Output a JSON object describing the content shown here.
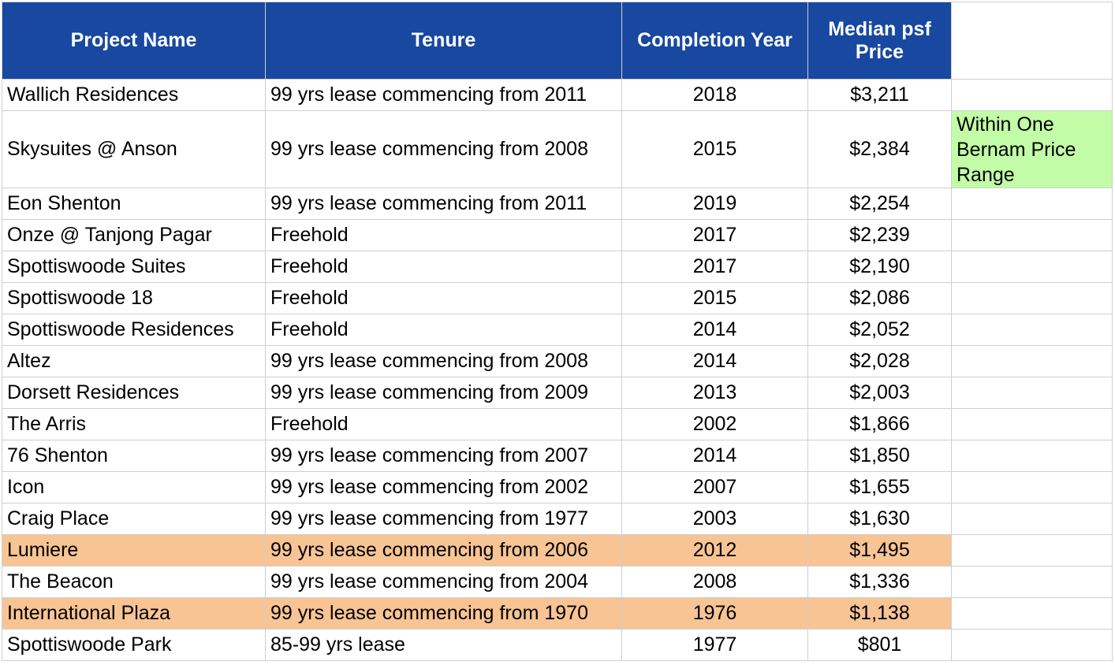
{
  "headers": {
    "project_name": "Project Name",
    "tenure": "Tenure",
    "completion_year": "Completion Year",
    "median_psf_price": "Median psf Price"
  },
  "note": "Within One Bernam Price Range",
  "colors": {
    "header_bg": "#1848a0",
    "highlight_orange": "#f8c494",
    "note_green": "#c2fca6"
  },
  "rows": [
    {
      "name": "Wallich Residences",
      "tenure": "99 yrs lease commencing from 2011",
      "year": "2018",
      "price": "$3,211",
      "highlight": false
    },
    {
      "name": "Skysuites @ Anson",
      "tenure": "99 yrs lease commencing from 2008",
      "year": "2015",
      "price": "$2,384",
      "highlight": false
    },
    {
      "name": "Eon Shenton",
      "tenure": "99 yrs lease commencing from 2011",
      "year": "2019",
      "price": "$2,254",
      "highlight": false
    },
    {
      "name": "Onze @ Tanjong Pagar",
      "tenure": "Freehold",
      "year": "2017",
      "price": "$2,239",
      "highlight": false
    },
    {
      "name": "Spottiswoode Suites",
      "tenure": "Freehold",
      "year": "2017",
      "price": "$2,190",
      "highlight": false
    },
    {
      "name": "Spottiswoode 18",
      "tenure": "Freehold",
      "year": "2015",
      "price": "$2,086",
      "highlight": false
    },
    {
      "name": "Spottiswoode Residences",
      "tenure": "Freehold",
      "year": "2014",
      "price": "$2,052",
      "highlight": false
    },
    {
      "name": "Altez",
      "tenure": "99 yrs lease commencing from 2008",
      "year": "2014",
      "price": "$2,028",
      "highlight": false
    },
    {
      "name": "Dorsett Residences",
      "tenure": "99 yrs lease commencing from 2009",
      "year": "2013",
      "price": "$2,003",
      "highlight": false
    },
    {
      "name": "The Arris",
      "tenure": "Freehold",
      "year": "2002",
      "price": "$1,866",
      "highlight": false
    },
    {
      "name": "76 Shenton",
      "tenure": "99 yrs lease commencing from 2007",
      "year": "2014",
      "price": "$1,850",
      "highlight": false
    },
    {
      "name": "Icon",
      "tenure": "99 yrs lease commencing from 2002",
      "year": "2007",
      "price": "$1,655",
      "highlight": false
    },
    {
      "name": "Craig Place",
      "tenure": "99 yrs lease commencing from 1977",
      "year": "2003",
      "price": "$1,630",
      "highlight": false
    },
    {
      "name": "Lumiere",
      "tenure": "99 yrs lease commencing from 2006",
      "year": "2012",
      "price": "$1,495",
      "highlight": true
    },
    {
      "name": "The Beacon",
      "tenure": "99 yrs lease commencing from 2004",
      "year": "2008",
      "price": "$1,336",
      "highlight": false
    },
    {
      "name": "International Plaza",
      "tenure": "99 yrs lease commencing from 1970",
      "year": "1976",
      "price": "$1,138",
      "highlight": true
    },
    {
      "name": "Spottiswoode Park",
      "tenure": "85-99 yrs lease",
      "year": "1977",
      "price": "$801",
      "highlight": false
    }
  ]
}
